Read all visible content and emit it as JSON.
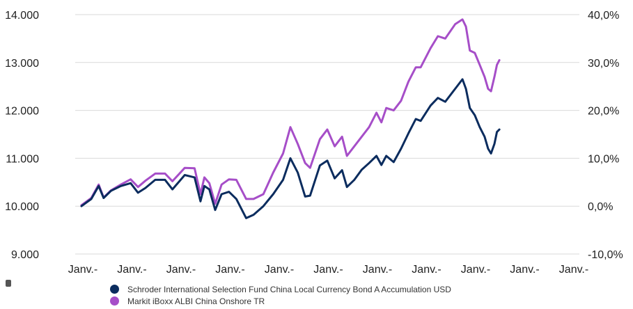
{
  "chart_data": {
    "type": "line",
    "x_labels": [
      "Janv.-",
      "Janv.-",
      "Janv.-",
      "Janv.-",
      "Janv.-",
      "Janv.-",
      "Janv.-",
      "Janv.-",
      "Janv.-",
      "Janv.-",
      "Janv.-"
    ],
    "y_left": {
      "ticks": [
        "14.000",
        "13.000",
        "12.000",
        "11.000",
        "10.000",
        "9.000"
      ],
      "ylim": [
        9000,
        14000
      ]
    },
    "y_right": {
      "ticks": [
        "40,0%",
        "30,0%",
        "20,0%",
        "10,0%",
        "0,0%",
        "-10,0%"
      ],
      "ylim": [
        -10,
        40
      ]
    },
    "grid": true,
    "legend_position": "bottom",
    "series": [
      {
        "name": "Schroder International Selection Fund China Local Currency Bond A Accumulation USD",
        "color": "#0b2c5e",
        "values": [
          [
            0.0,
            10000
          ],
          [
            0.2,
            10150
          ],
          [
            0.35,
            10420
          ],
          [
            0.45,
            10170
          ],
          [
            0.6,
            10320
          ],
          [
            0.8,
            10420
          ],
          [
            1.0,
            10480
          ],
          [
            1.15,
            10280
          ],
          [
            1.3,
            10380
          ],
          [
            1.5,
            10550
          ],
          [
            1.7,
            10550
          ],
          [
            1.85,
            10350
          ],
          [
            2.1,
            10650
          ],
          [
            2.3,
            10600
          ],
          [
            2.42,
            10100
          ],
          [
            2.5,
            10420
          ],
          [
            2.6,
            10350
          ],
          [
            2.72,
            9920
          ],
          [
            2.85,
            10250
          ],
          [
            3.0,
            10300
          ],
          [
            3.15,
            10150
          ],
          [
            3.35,
            9750
          ],
          [
            3.5,
            9820
          ],
          [
            3.7,
            10000
          ],
          [
            3.9,
            10250
          ],
          [
            4.1,
            10550
          ],
          [
            4.25,
            11000
          ],
          [
            4.4,
            10700
          ],
          [
            4.55,
            10200
          ],
          [
            4.65,
            10220
          ],
          [
            4.85,
            10850
          ],
          [
            5.0,
            10950
          ],
          [
            5.15,
            10580
          ],
          [
            5.3,
            10750
          ],
          [
            5.4,
            10400
          ],
          [
            5.55,
            10550
          ],
          [
            5.7,
            10760
          ],
          [
            5.85,
            10900
          ],
          [
            6.0,
            11050
          ],
          [
            6.1,
            10860
          ],
          [
            6.2,
            11050
          ],
          [
            6.35,
            10920
          ],
          [
            6.5,
            11200
          ],
          [
            6.65,
            11520
          ],
          [
            6.8,
            11820
          ],
          [
            6.9,
            11780
          ],
          [
            7.1,
            12100
          ],
          [
            7.25,
            12260
          ],
          [
            7.4,
            12180
          ],
          [
            7.6,
            12450
          ],
          [
            7.75,
            12650
          ],
          [
            7.82,
            12450
          ],
          [
            7.9,
            12050
          ],
          [
            8.0,
            11900
          ],
          [
            8.1,
            11650
          ],
          [
            8.2,
            11450
          ],
          [
            8.27,
            11200
          ],
          [
            8.33,
            11100
          ],
          [
            8.4,
            11300
          ],
          [
            8.45,
            11550
          ],
          [
            8.5,
            11600
          ]
        ]
      },
      {
        "name": "Markit iBoxx ALBI China Onshore TR",
        "color": "#a64ec8",
        "values": [
          [
            0.0,
            10020
          ],
          [
            0.2,
            10170
          ],
          [
            0.35,
            10450
          ],
          [
            0.45,
            10180
          ],
          [
            0.6,
            10330
          ],
          [
            0.8,
            10450
          ],
          [
            1.0,
            10560
          ],
          [
            1.15,
            10400
          ],
          [
            1.3,
            10530
          ],
          [
            1.5,
            10680
          ],
          [
            1.7,
            10680
          ],
          [
            1.85,
            10520
          ],
          [
            2.1,
            10800
          ],
          [
            2.3,
            10790
          ],
          [
            2.42,
            10250
          ],
          [
            2.5,
            10600
          ],
          [
            2.6,
            10480
          ],
          [
            2.72,
            10050
          ],
          [
            2.85,
            10450
          ],
          [
            3.0,
            10560
          ],
          [
            3.15,
            10550
          ],
          [
            3.35,
            10150
          ],
          [
            3.5,
            10150
          ],
          [
            3.7,
            10250
          ],
          [
            3.9,
            10700
          ],
          [
            4.1,
            11100
          ],
          [
            4.25,
            11650
          ],
          [
            4.4,
            11300
          ],
          [
            4.55,
            10900
          ],
          [
            4.65,
            10800
          ],
          [
            4.85,
            11400
          ],
          [
            5.0,
            11600
          ],
          [
            5.15,
            11250
          ],
          [
            5.3,
            11450
          ],
          [
            5.4,
            11050
          ],
          [
            5.55,
            11250
          ],
          [
            5.7,
            11450
          ],
          [
            5.85,
            11650
          ],
          [
            6.0,
            11950
          ],
          [
            6.1,
            11750
          ],
          [
            6.2,
            12050
          ],
          [
            6.35,
            12000
          ],
          [
            6.5,
            12200
          ],
          [
            6.65,
            12600
          ],
          [
            6.8,
            12900
          ],
          [
            6.9,
            12900
          ],
          [
            7.1,
            13300
          ],
          [
            7.25,
            13550
          ],
          [
            7.4,
            13500
          ],
          [
            7.6,
            13800
          ],
          [
            7.75,
            13900
          ],
          [
            7.82,
            13750
          ],
          [
            7.9,
            13250
          ],
          [
            8.0,
            13200
          ],
          [
            8.1,
            12950
          ],
          [
            8.2,
            12700
          ],
          [
            8.27,
            12450
          ],
          [
            8.33,
            12400
          ],
          [
            8.4,
            12700
          ],
          [
            8.45,
            12950
          ],
          [
            8.5,
            13050
          ]
        ]
      }
    ]
  }
}
